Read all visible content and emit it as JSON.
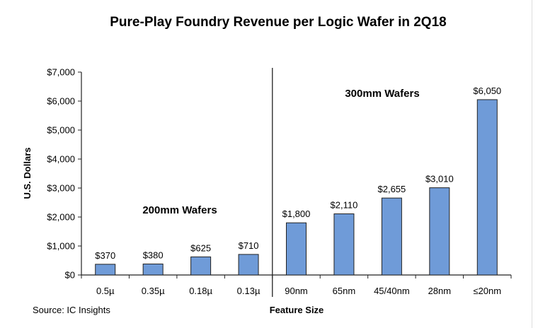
{
  "chart_data": {
    "type": "bar",
    "title": "Pure-Play Foundry Revenue per Logic Wafer in 2Q18",
    "xlabel": "Feature Size",
    "ylabel": "U.S. Dollars",
    "categories": [
      "0.5µ",
      "0.35µ",
      "0.18µ",
      "0.13µ",
      "90nm",
      "65nm",
      "45/40nm",
      "28nm",
      "≤20nm"
    ],
    "values": [
      370,
      380,
      625,
      710,
      1800,
      2110,
      2655,
      3010,
      6050
    ],
    "data_labels": [
      "$370",
      "$380",
      "$625",
      "$710",
      "$1,800",
      "$2,110",
      "$2,655",
      "$3,010",
      "$6,050"
    ],
    "ylim": [
      0,
      7000
    ],
    "yticks": [
      0,
      1000,
      2000,
      3000,
      4000,
      5000,
      6000,
      7000
    ],
    "ytick_labels": [
      "$0",
      "$1,000",
      "$2,000",
      "$3,000",
      "$4,000",
      "$5,000",
      "$6,000",
      "$7,000"
    ],
    "annotations": [
      "200mm Wafers",
      "300mm Wafers"
    ],
    "source": "Source: IC Insights",
    "bar_color": "#6f9bd8",
    "grid": false
  }
}
